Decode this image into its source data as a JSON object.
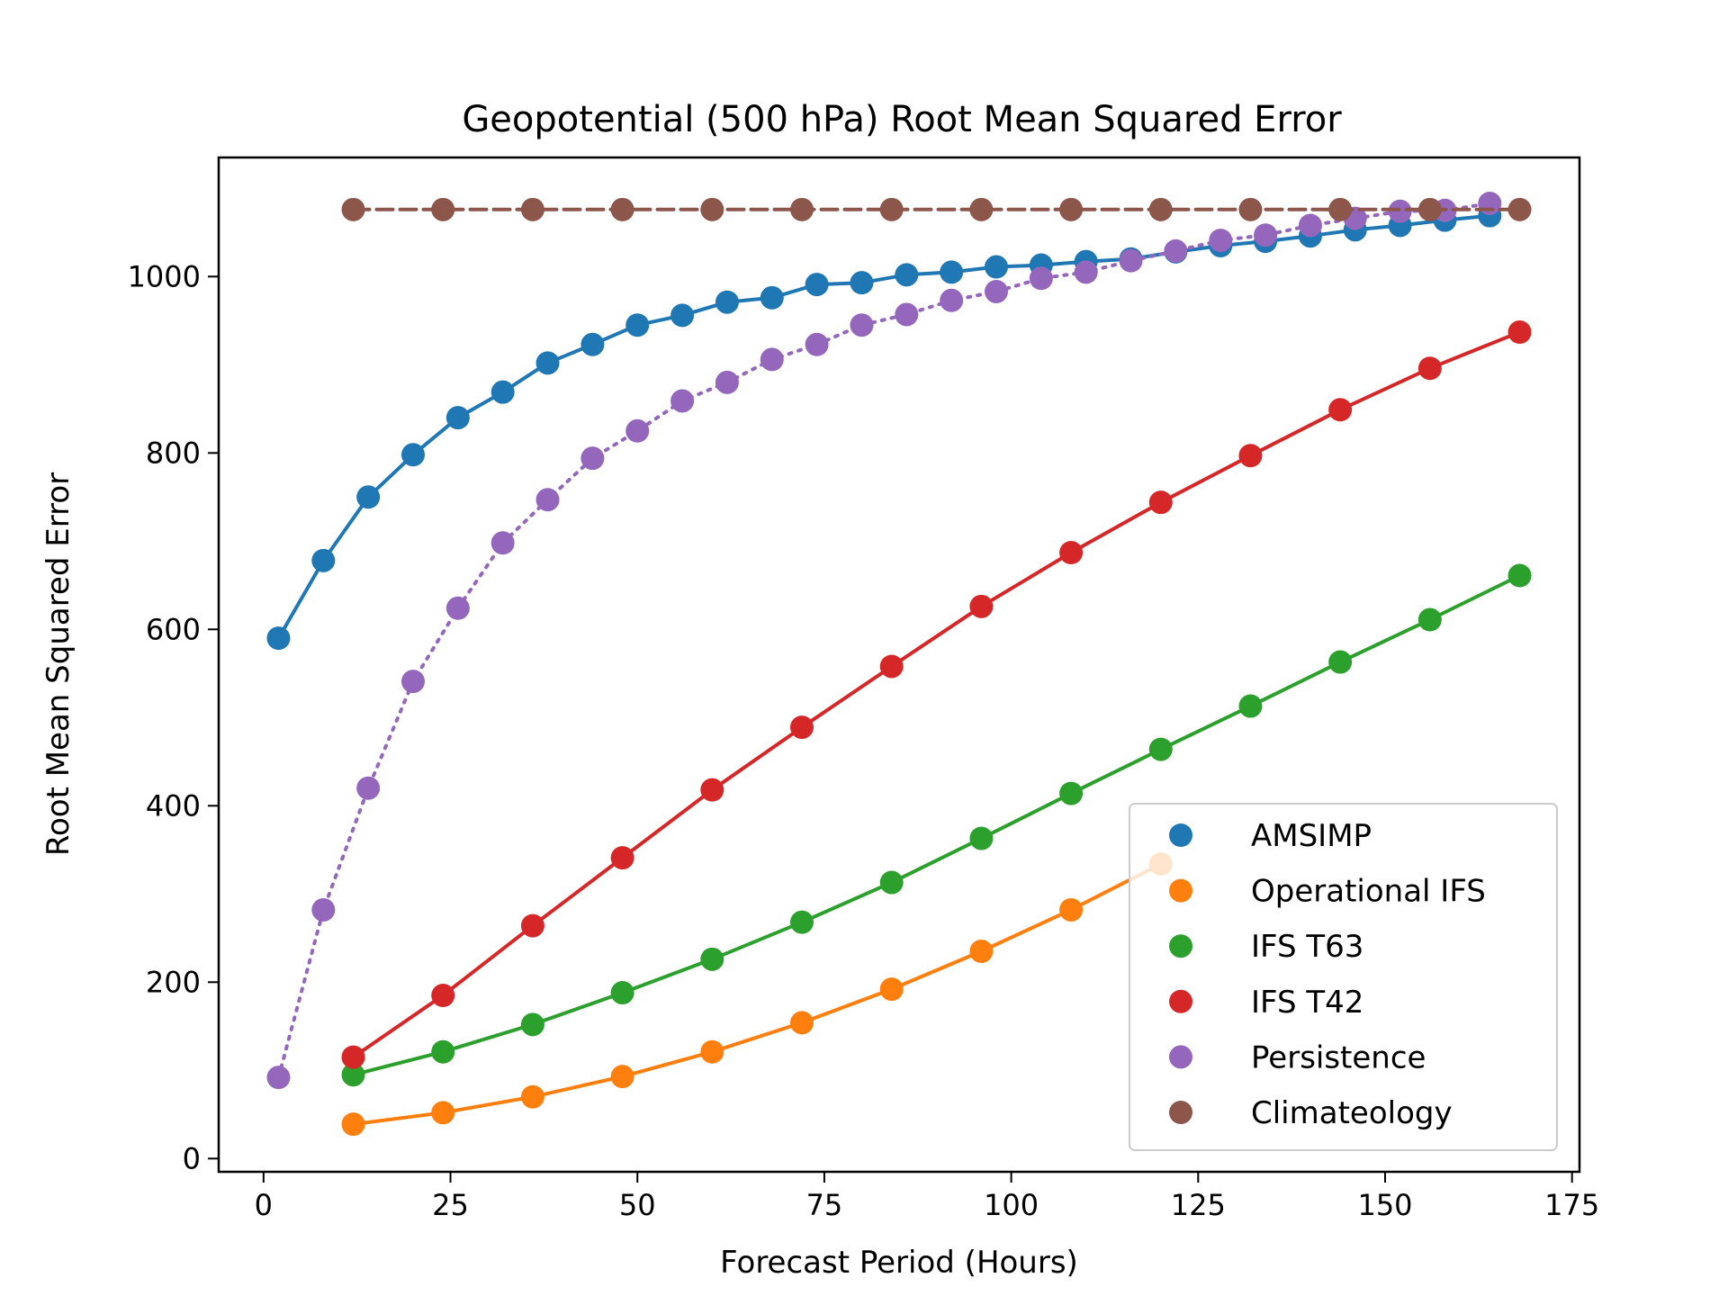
{
  "chart_data": {
    "type": "line",
    "title": "Geopotential (500 hPa) Root Mean Squared Error",
    "xlabel": "Forecast Period (Hours)",
    "ylabel": "Root Mean Squared Error",
    "xlim": [
      -6,
      176
    ],
    "ylim": [
      -15,
      1135
    ],
    "xticks": [
      0,
      25,
      50,
      75,
      100,
      125,
      150,
      175
    ],
    "xtick_labels": [
      "0",
      "25",
      "50",
      "75",
      "100",
      "125",
      "150",
      "175"
    ],
    "yticks": [
      0,
      200,
      400,
      600,
      800,
      1000
    ],
    "ytick_labels": [
      "0",
      "200",
      "400",
      "600",
      "800",
      "1000"
    ],
    "grid": false,
    "legend_position": "lower-right",
    "series": [
      {
        "name": "AMSIMP",
        "color": "#1f77b4",
        "linestyle": "solid",
        "x": [
          2,
          8,
          14,
          20,
          26,
          32,
          38,
          44,
          50,
          56,
          62,
          68,
          74,
          80,
          86,
          92,
          98,
          104,
          110,
          116,
          122,
          128,
          134,
          140,
          146,
          152,
          158,
          164
        ],
        "y": [
          590,
          678,
          750,
          798,
          840,
          869,
          902,
          923,
          945,
          956,
          971,
          976,
          991,
          993,
          1002,
          1005,
          1011,
          1013,
          1017,
          1020,
          1028,
          1035,
          1040,
          1046,
          1053,
          1058,
          1064,
          1069
        ]
      },
      {
        "name": "Operational IFS",
        "color": "#ff7f0e",
        "linestyle": "solid",
        "x": [
          12,
          24,
          36,
          48,
          60,
          72,
          84,
          96,
          108,
          120
        ],
        "y": [
          39,
          52,
          70,
          93,
          121,
          154,
          192,
          235,
          282,
          334
        ]
      },
      {
        "name": "IFS T63",
        "color": "#2ca02c",
        "linestyle": "solid",
        "x": [
          12,
          24,
          36,
          48,
          60,
          72,
          84,
          96,
          108,
          120,
          132,
          144,
          156,
          168
        ],
        "y": [
          95,
          121,
          152,
          188,
          226,
          268,
          313,
          363,
          414,
          464,
          513,
          563,
          611,
          661
        ]
      },
      {
        "name": "IFS T42",
        "color": "#d62728",
        "linestyle": "solid",
        "x": [
          12,
          24,
          36,
          48,
          60,
          72,
          84,
          96,
          108,
          120,
          132,
          144,
          156,
          168
        ],
        "y": [
          115,
          185,
          264,
          341,
          418,
          489,
          558,
          626,
          687,
          744,
          797,
          849,
          896,
          937
        ]
      },
      {
        "name": "Persistence",
        "color": "#9467bd",
        "linestyle": "dotted",
        "x": [
          2,
          8,
          14,
          20,
          26,
          32,
          38,
          44,
          50,
          56,
          62,
          68,
          74,
          80,
          86,
          92,
          98,
          104,
          110,
          116,
          122,
          128,
          134,
          140,
          146,
          152,
          158,
          164
        ],
        "y": [
          92,
          282,
          420,
          541,
          624,
          698,
          747,
          794,
          825,
          859,
          880,
          906,
          923,
          945,
          957,
          973,
          983,
          998,
          1005,
          1018,
          1029,
          1041,
          1047,
          1058,
          1066,
          1074,
          1075,
          1083
        ]
      },
      {
        "name": "Climateology",
        "color": "#8c564b",
        "linestyle": "dashed",
        "x": [
          12,
          24,
          36,
          48,
          60,
          72,
          84,
          96,
          108,
          120,
          132,
          144,
          156,
          168
        ],
        "y": [
          1076,
          1076,
          1076,
          1076,
          1076,
          1076,
          1076,
          1076,
          1076,
          1076,
          1076,
          1076,
          1076,
          1076
        ]
      }
    ]
  }
}
